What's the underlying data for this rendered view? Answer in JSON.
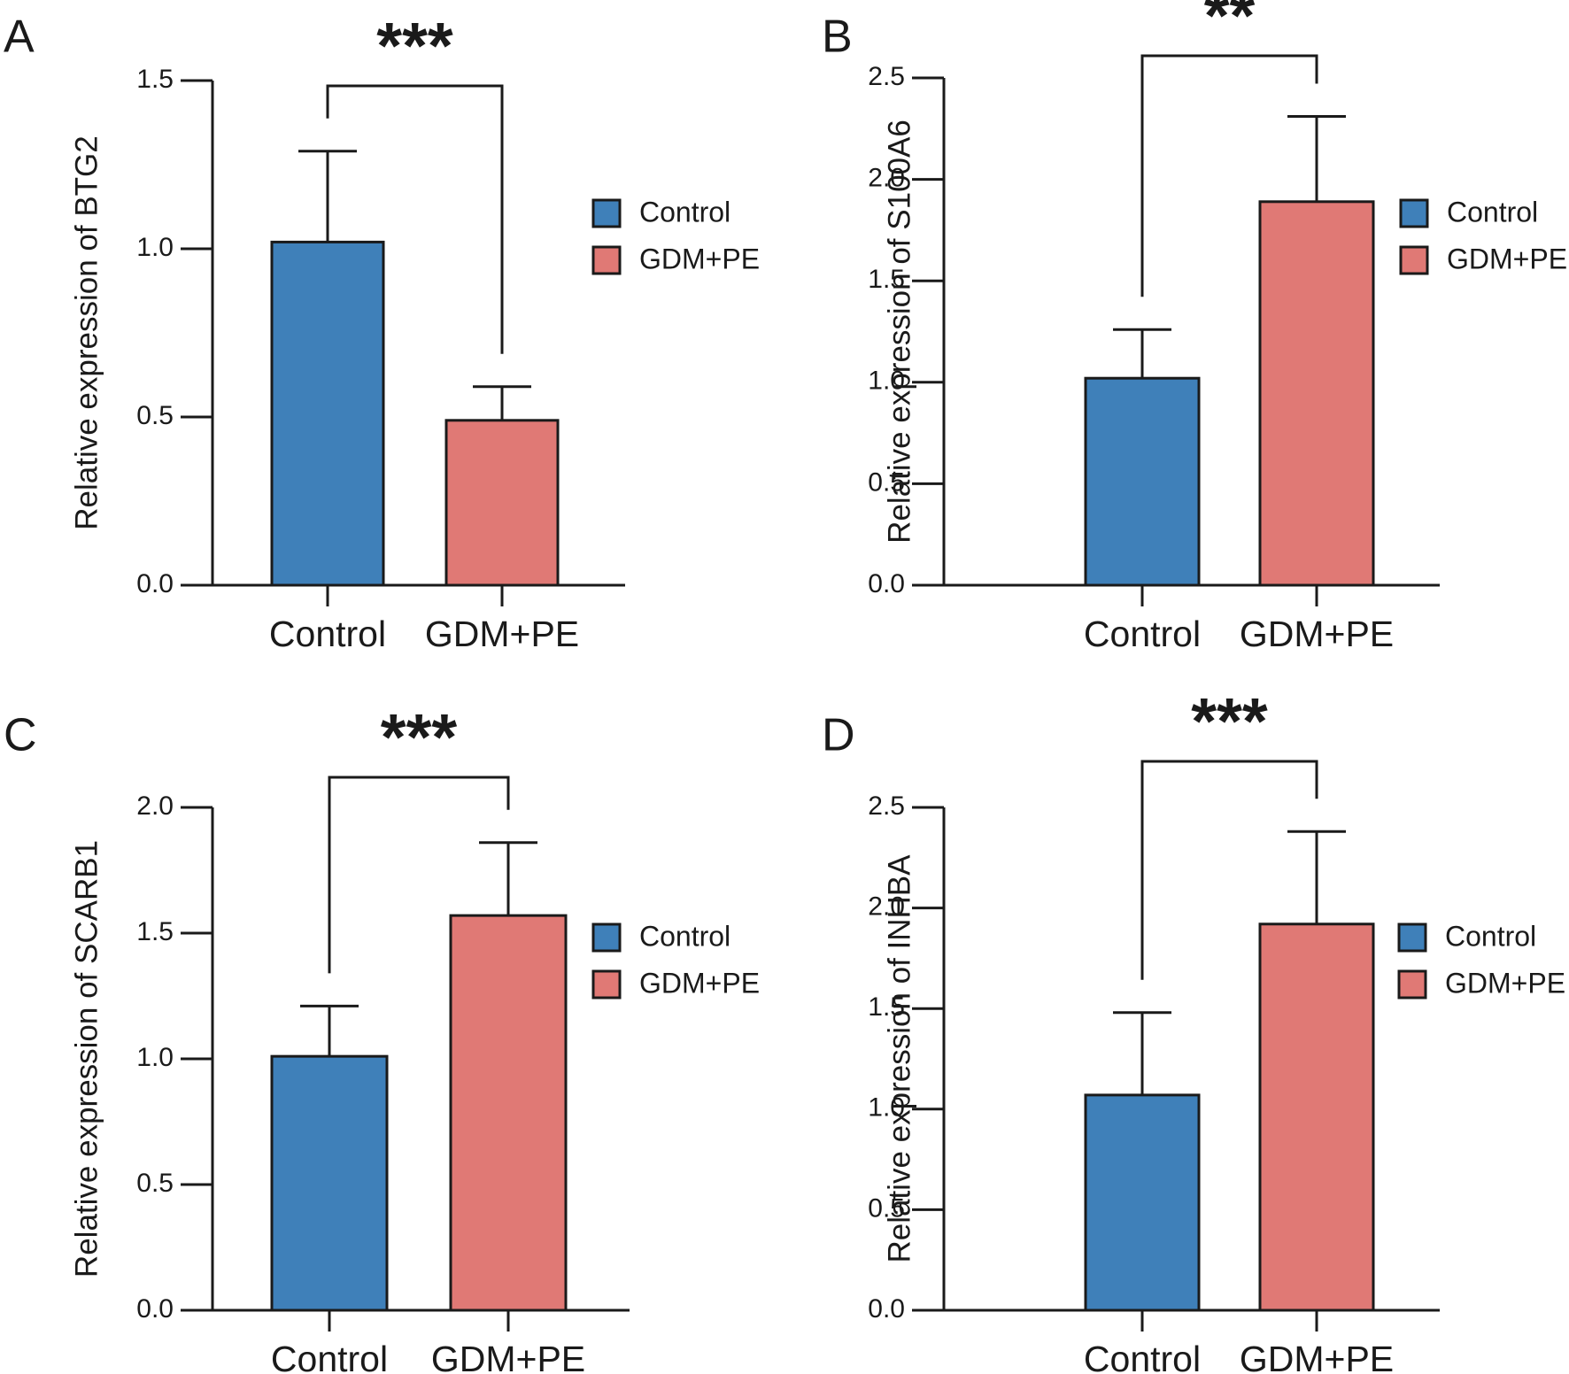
{
  "colors": {
    "control": "#3f80b9",
    "gdm_pe": "#e07975"
  },
  "chart_data": [
    {
      "panel": "A",
      "type": "bar",
      "categories": [
        "Control",
        "GDM+PE"
      ],
      "values": [
        1.02,
        0.49
      ],
      "errors": [
        0.27,
        0.1
      ],
      "ylabel": "Relative  expression of BTG2",
      "ylim": [
        0,
        1.5
      ],
      "yticks": [
        "0.0",
        "0.5",
        "1.0",
        "1.5"
      ],
      "significance": "***",
      "legend": [
        "Control",
        "GDM+PE"
      ],
      "legend_position": "right"
    },
    {
      "panel": "B",
      "type": "bar",
      "categories": [
        "Control",
        "GDM+PE"
      ],
      "values": [
        1.02,
        1.89
      ],
      "errors": [
        0.24,
        0.42
      ],
      "ylabel": "Relative  expression of S100A6",
      "ylim": [
        0,
        2.5
      ],
      "yticks": [
        "0.0",
        "0.5",
        "1.0",
        "1.5",
        "2.0",
        "2.5"
      ],
      "significance": "**",
      "legend": [
        "Control",
        "GDM+PE"
      ],
      "legend_position": "right"
    },
    {
      "panel": "C",
      "type": "bar",
      "categories": [
        "Control",
        "GDM+PE"
      ],
      "values": [
        1.01,
        1.57
      ],
      "errors": [
        0.2,
        0.29
      ],
      "ylabel": "Relative  expression of SCARB1",
      "ylim": [
        0,
        2.0
      ],
      "yticks": [
        "0.0",
        "0.5",
        "1.0",
        "1.5",
        "2.0"
      ],
      "significance": "***",
      "legend": [
        "Control",
        "GDM+PE"
      ],
      "legend_position": "right"
    },
    {
      "panel": "D",
      "type": "bar",
      "categories": [
        "Control",
        "GDM+PE"
      ],
      "values": [
        1.07,
        1.92
      ],
      "errors": [
        0.41,
        0.46
      ],
      "ylabel": "Relative  expression of INHBA",
      "ylim": [
        0,
        2.5
      ],
      "yticks": [
        "0.0",
        "0.5",
        "1.0",
        "1.5",
        "2.0",
        "2.5"
      ],
      "significance": "***",
      "legend": [
        "Control",
        "GDM+PE"
      ],
      "legend_position": "right"
    }
  ]
}
